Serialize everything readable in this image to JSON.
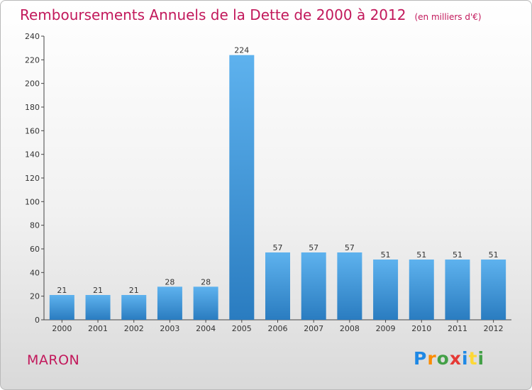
{
  "title": "Remboursements Annuels de la Dette de 2000 à 2012",
  "unit_note": "(en milliers d'€)",
  "commune": "MARON",
  "logo": {
    "text": "Proxiti",
    "letters": [
      {
        "ch": "P",
        "color": "#1e88e5"
      },
      {
        "ch": "r",
        "color": "#fb8c00"
      },
      {
        "ch": "o",
        "color": "#43a047"
      },
      {
        "ch": "x",
        "color": "#e53935"
      },
      {
        "ch": "i",
        "color": "#1e88e5"
      },
      {
        "ch": "t",
        "color": "#fdd835"
      },
      {
        "ch": "i",
        "color": "#43a047"
      }
    ]
  },
  "chart_data": {
    "type": "bar",
    "categories": [
      "2000",
      "2001",
      "2002",
      "2003",
      "2004",
      "2005",
      "2006",
      "2007",
      "2008",
      "2009",
      "2010",
      "2011",
      "2012"
    ],
    "values": [
      21,
      21,
      21,
      28,
      28,
      224,
      57,
      57,
      57,
      51,
      51,
      51,
      51
    ],
    "data_labels": [
      "21",
      "21",
      "21",
      "28",
      "28",
      "224",
      "57",
      "57",
      "57",
      "51",
      "51",
      "51",
      "51"
    ],
    "yticks": [
      "0",
      "20",
      "40",
      "60",
      "80",
      "100",
      "120",
      "140",
      "160",
      "180",
      "200",
      "220",
      "240"
    ],
    "ylim": [
      0,
      240
    ],
    "xlabel": "",
    "ylabel": "",
    "grid": false,
    "colors": {
      "bar_light": "#5aaeea",
      "bar_dark": "#2a7fc4",
      "axis": "#444444",
      "title": "#c2185b"
    }
  }
}
